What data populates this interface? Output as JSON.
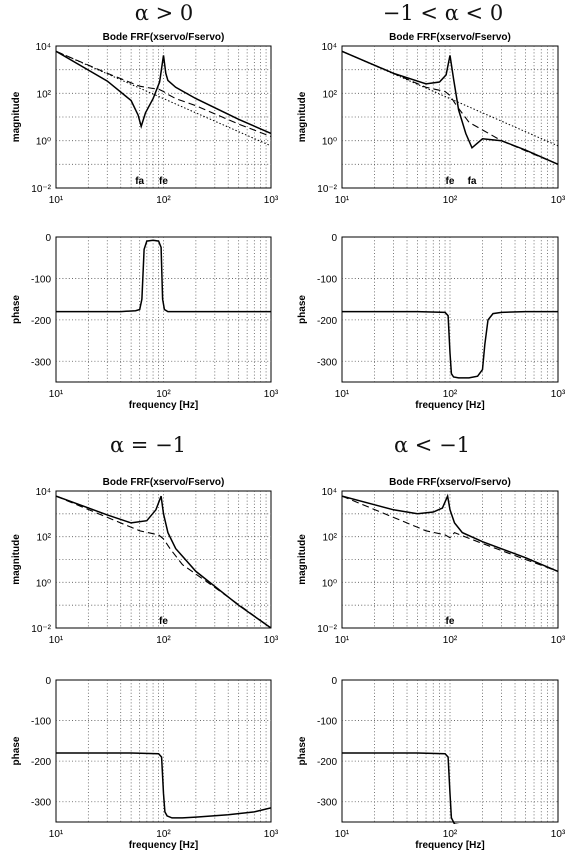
{
  "colors": {
    "line": "#000000",
    "background": "#ffffff",
    "grid": "#555555"
  },
  "chart_data": [
    {
      "type": "line",
      "condition": "α > 0",
      "title": "Bode FRF(xservo/Fservo)",
      "xlabel": "",
      "ylabel": "magnitude",
      "xscale": "log",
      "yscale": "log",
      "xlim": [
        10,
        1000
      ],
      "ylim": [
        0.01,
        10000
      ],
      "grid": true,
      "x_tick_labels": [
        "10¹",
        "10²",
        "10³"
      ],
      "y_tick_labels": [
        "10⁻²",
        "10⁰",
        "10²",
        "10⁴"
      ],
      "annotations": [
        "fa",
        "fe"
      ],
      "series": [
        {
          "style": "solid",
          "x": [
            10,
            30,
            50,
            58,
            62,
            68,
            80,
            92,
            100,
            105,
            110,
            130,
            200,
            500,
            1000
          ],
          "y": [
            6000,
            330,
            50,
            12,
            4,
            15,
            60,
            300,
            4000,
            700,
            350,
            180,
            60,
            8,
            2
          ]
        },
        {
          "style": "dashed",
          "x": [
            10,
            30,
            60,
            80,
            90,
            100,
            110,
            130,
            200,
            500,
            1000
          ],
          "y": [
            6000,
            700,
            200,
            160,
            150,
            120,
            90,
            60,
            30,
            5,
            1.5
          ]
        },
        {
          "style": "dotted",
          "x": [
            10,
            100,
            1000
          ],
          "y": [
            6000,
            60,
            0.6
          ]
        }
      ]
    },
    {
      "type": "line",
      "condition": "−1 < α < 0",
      "title": "Bode FRF(xservo/Fservo)",
      "xlabel": "",
      "ylabel": "magnitude",
      "xscale": "log",
      "yscale": "log",
      "xlim": [
        10,
        1000
      ],
      "ylim": [
        0.01,
        10000
      ],
      "grid": true,
      "x_tick_labels": [
        "10¹",
        "10²",
        "10³"
      ],
      "y_tick_labels": [
        "10⁻²",
        "10⁰",
        "10²",
        "10⁴"
      ],
      "annotations": [
        "fe",
        "fa"
      ],
      "series": [
        {
          "style": "solid",
          "x": [
            10,
            30,
            60,
            80,
            92,
            100,
            108,
            120,
            140,
            160,
            200,
            300,
            500,
            1000
          ],
          "y": [
            6000,
            700,
            250,
            300,
            600,
            4000,
            400,
            20,
            2,
            0.5,
            1.2,
            1,
            0.4,
            0.1
          ]
        },
        {
          "style": "dashed",
          "x": [
            10,
            60,
            90,
            100,
            115,
            150,
            300,
            1000
          ],
          "y": [
            6000,
            180,
            120,
            80,
            30,
            6,
            1,
            0.1
          ]
        },
        {
          "style": "dotted",
          "x": [
            10,
            100,
            1000
          ],
          "y": [
            6000,
            60,
            0.6
          ]
        }
      ]
    },
    {
      "type": "line",
      "condition": "α > 0",
      "title": "",
      "xlabel": "frequency [Hz]",
      "ylabel": "phase",
      "xscale": "log",
      "xlim": [
        10,
        1000
      ],
      "ylim": [
        -350,
        0
      ],
      "grid": true,
      "x_tick_labels": [
        "10¹",
        "10²",
        "10³"
      ],
      "y_tick_labels": [
        "0",
        "-100",
        "-200",
        "-300"
      ],
      "series": [
        {
          "style": "solid",
          "x": [
            10,
            40,
            55,
            60,
            63,
            66,
            70,
            80,
            90,
            95,
            98,
            102,
            110,
            150,
            300,
            1000
          ],
          "y": [
            -180,
            -180,
            -178,
            -175,
            -150,
            -30,
            -10,
            -8,
            -10,
            -25,
            -150,
            -175,
            -180,
            -180,
            -180,
            -180
          ]
        }
      ]
    },
    {
      "type": "line",
      "condition": "−1 < α < 0",
      "title": "",
      "xlabel": "frequency [Hz]",
      "ylabel": "phase",
      "xscale": "log",
      "xlim": [
        10,
        1000
      ],
      "ylim": [
        -350,
        0
      ],
      "grid": true,
      "x_tick_labels": [
        "10¹",
        "10²",
        "10³"
      ],
      "y_tick_labels": [
        "0",
        "-100",
        "-200",
        "-300"
      ],
      "series": [
        {
          "style": "solid",
          "x": [
            10,
            50,
            90,
            96,
            100,
            103,
            108,
            120,
            150,
            180,
            200,
            210,
            225,
            250,
            300,
            500,
            1000
          ],
          "y": [
            -180,
            -180,
            -182,
            -190,
            -280,
            -330,
            -338,
            -340,
            -340,
            -336,
            -320,
            -260,
            -200,
            -185,
            -182,
            -180,
            -180
          ]
        }
      ]
    },
    {
      "type": "line",
      "condition": "α = −1",
      "title": "Bode FRF(xservo/Fservo)",
      "xlabel": "",
      "ylabel": "magnitude",
      "xscale": "log",
      "yscale": "log",
      "xlim": [
        10,
        1000
      ],
      "ylim": [
        0.01,
        10000
      ],
      "grid": true,
      "x_tick_labels": [
        "10¹",
        "10²",
        "10³"
      ],
      "y_tick_labels": [
        "10⁻²",
        "10⁰",
        "10²",
        "10⁴"
      ],
      "annotations": [
        "fe"
      ],
      "series": [
        {
          "style": "solid",
          "x": [
            10,
            30,
            50,
            70,
            85,
            95,
            100,
            110,
            130,
            200,
            500,
            1000
          ],
          "y": [
            6000,
            900,
            400,
            500,
            1500,
            6000,
            1000,
            150,
            30,
            3,
            0.1,
            0.01
          ]
        },
        {
          "style": "dashed",
          "x": [
            10,
            60,
            90,
            100,
            115,
            150,
            300,
            1000
          ],
          "y": [
            6000,
            180,
            120,
            80,
            30,
            6,
            0.6,
            0.01
          ]
        }
      ]
    },
    {
      "type": "line",
      "condition": "α < −1",
      "title": "Bode FRF(xservo/Fservo)",
      "xlabel": "",
      "ylabel": "magnitude",
      "xscale": "log",
      "yscale": "log",
      "xlim": [
        10,
        1000
      ],
      "ylim": [
        0.01,
        10000
      ],
      "grid": true,
      "x_tick_labels": [
        "10¹",
        "10²",
        "10³"
      ],
      "y_tick_labels": [
        "10⁻²",
        "10⁰",
        "10²",
        "10⁴"
      ],
      "annotations": [
        "fe"
      ],
      "series": [
        {
          "style": "solid",
          "x": [
            10,
            30,
            50,
            70,
            85,
            95,
            100,
            110,
            130,
            200,
            500,
            1000
          ],
          "y": [
            6000,
            1500,
            1000,
            1200,
            1800,
            6000,
            1500,
            400,
            150,
            60,
            12,
            3
          ]
        },
        {
          "style": "dashed",
          "x": [
            10,
            60,
            90,
            100,
            110,
            130,
            200,
            500,
            1000
          ],
          "y": [
            6000,
            180,
            120,
            90,
            150,
            110,
            50,
            10,
            3
          ]
        }
      ]
    },
    {
      "type": "line",
      "condition": "α = −1",
      "title": "",
      "xlabel": "frequency [Hz]",
      "ylabel": "phase",
      "xscale": "log",
      "xlim": [
        10,
        1000
      ],
      "ylim": [
        -350,
        0
      ],
      "grid": true,
      "x_tick_labels": [
        "10¹",
        "10²",
        "10³"
      ],
      "y_tick_labels": [
        "0",
        "-100",
        "-200",
        "-300"
      ],
      "series": [
        {
          "style": "solid",
          "x": [
            10,
            50,
            90,
            96,
            100,
            103,
            108,
            120,
            150,
            200,
            400,
            700,
            1000
          ],
          "y": [
            -180,
            -180,
            -182,
            -190,
            -280,
            -325,
            -335,
            -340,
            -340,
            -338,
            -332,
            -325,
            -315
          ]
        }
      ]
    },
    {
      "type": "line",
      "condition": "α < −1",
      "title": "",
      "xlabel": "frequency [Hz]",
      "ylabel": "phase",
      "xscale": "log",
      "xlim": [
        10,
        1000
      ],
      "ylim": [
        -350,
        0
      ],
      "grid": true,
      "x_tick_labels": [
        "10¹",
        "10²",
        "10³"
      ],
      "y_tick_labels": [
        "0",
        "-100",
        "-200",
        "-300"
      ],
      "series": [
        {
          "style": "solid",
          "x": [
            10,
            50,
            90,
            96,
            100,
            103,
            110,
            130,
            200,
            500,
            1000
          ],
          "y": [
            -180,
            -180,
            -182,
            -190,
            -280,
            -340,
            -355,
            -358,
            -358,
            -358,
            -358
          ]
        }
      ]
    }
  ]
}
